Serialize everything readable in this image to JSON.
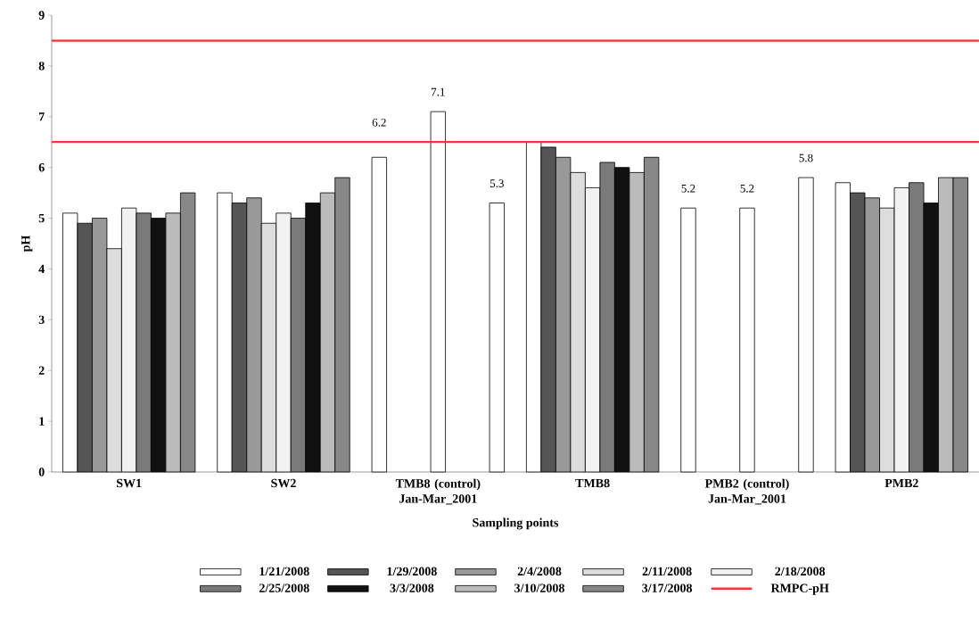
{
  "chart_data": {
    "type": "bar",
    "xlabel": "Sampling points",
    "ylabel": "pH",
    "categories": [
      "SW1",
      "SW2",
      "TMB8 (control) Jan-Mar_2001",
      "TMB8",
      "PMB2 (control) Jan-Mar_2001",
      "PMB2"
    ],
    "series": [
      {
        "name": "1/21/2008",
        "color": "#ffffff",
        "values": [
          5.1,
          5.5,
          6.2,
          6.5,
          5.2,
          5.7
        ],
        "value_labels": [
          null,
          null,
          "6.2",
          null,
          "5.2",
          null
        ]
      },
      {
        "name": "1/29/2008",
        "color": "#555555",
        "values": [
          4.9,
          5.3,
          null,
          6.4,
          null,
          5.5
        ]
      },
      {
        "name": "2/4/2008",
        "color": "#999999",
        "values": [
          5.0,
          5.4,
          null,
          6.2,
          null,
          5.4
        ]
      },
      {
        "name": "2/11/2008",
        "color": "#dddddd",
        "values": [
          4.4,
          4.9,
          null,
          5.9,
          null,
          5.2
        ]
      },
      {
        "name": "2/18/2008",
        "color": "#f2f2f2",
        "values": [
          5.2,
          5.1,
          7.1,
          5.6,
          5.2,
          5.6
        ],
        "value_labels": [
          null,
          null,
          "7.1",
          null,
          "5.2",
          null
        ],
        "colors": [
          "#f2f2f2",
          "#f2f2f2",
          "#ffffff",
          "#f2f2f2",
          "#ffffff",
          "#f2f2f2"
        ]
      },
      {
        "name": "2/25/2008",
        "color": "#7a7a7a",
        "values": [
          5.1,
          5.0,
          null,
          6.1,
          null,
          5.7
        ]
      },
      {
        "name": "3/3/2008",
        "color": "#111111",
        "values": [
          5.0,
          5.3,
          null,
          6.0,
          null,
          5.3
        ]
      },
      {
        "name": "3/10/2008",
        "color": "#bbbbbb",
        "values": [
          5.1,
          5.5,
          null,
          5.9,
          null,
          5.8
        ]
      },
      {
        "name": "3/17/2008",
        "color": "#888888",
        "values": [
          5.5,
          5.8,
          5.3,
          6.2,
          5.8,
          5.8
        ],
        "value_labels": [
          null,
          null,
          "5.3",
          null,
          "5.8",
          null
        ],
        "colors": [
          "#888888",
          "#888888",
          "#ffffff",
          "#888888",
          "#ffffff",
          "#888888"
        ]
      }
    ],
    "ref_lines": [
      {
        "axis": "y",
        "value": 6.5,
        "label": "RMPC-pH",
        "color": "#ff3333"
      },
      {
        "axis": "y",
        "value": 8.5,
        "color": "#ff3333"
      }
    ],
    "ylim": [
      0,
      9
    ],
    "yticks": [
      0,
      1,
      2,
      3,
      4,
      5,
      6,
      7,
      8,
      9
    ],
    "legend": "bottom",
    "grid": false
  }
}
